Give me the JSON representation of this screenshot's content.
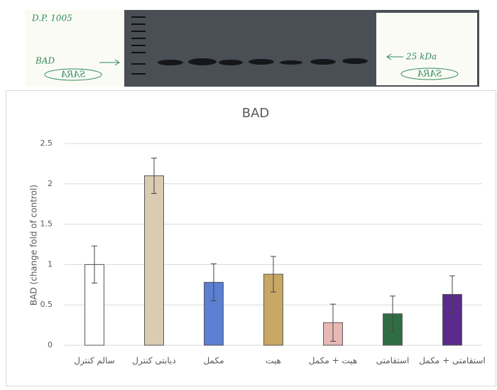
{
  "blot": {
    "sample": "D.P. 1005",
    "protein": "BAD",
    "left_tag": "SARA",
    "right_tag": "SARA",
    "marker": "25 kDa"
  },
  "chart_data": {
    "type": "bar",
    "title": "BAD",
    "y_label": "BAD (change fold of control)",
    "categories": [
      "سالم کنترل",
      "دیابتی کنترل",
      "مکمل",
      "هیت",
      "هیت + مکمل",
      "استقامتی",
      "استقامتی + مکمل"
    ],
    "values": [
      1.0,
      2.1,
      0.78,
      0.88,
      0.28,
      0.39,
      0.63
    ],
    "errors": [
      0.23,
      0.22,
      0.23,
      0.22,
      0.23,
      0.22,
      0.23
    ],
    "colors": [
      "#ffffff",
      "#d9ccb0",
      "#5b7fd1",
      "#c9a865",
      "#e8b8b4",
      "#2f6e45",
      "#5a2a8c"
    ],
    "ylim": [
      0,
      2.5
    ],
    "yticks": [
      0,
      0.5,
      1,
      1.5,
      2,
      2.5
    ],
    "grid": true
  }
}
